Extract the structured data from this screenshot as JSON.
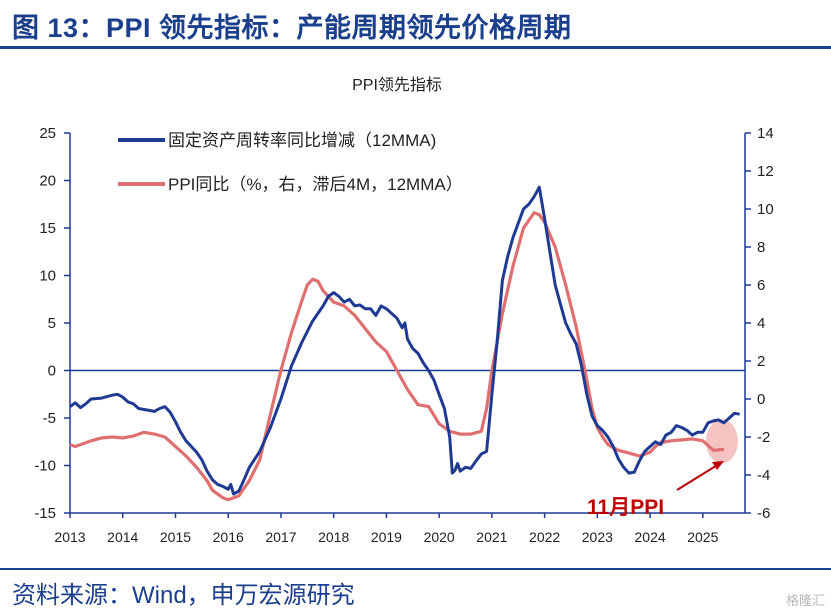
{
  "header": {
    "title": "图 13：PPI 领先指标：产能周期领先价格周期"
  },
  "footer": {
    "source": "资料来源：Wind，申万宏源研究",
    "watermark": "格隆汇"
  },
  "chart_data": {
    "type": "line",
    "title": "PPI领先指标",
    "x_ticks": [
      "2013",
      "2014",
      "2015",
      "2016",
      "2017",
      "2018",
      "2019",
      "2020",
      "2021",
      "2022",
      "2023",
      "2024",
      "2025"
    ],
    "y_left_ticks": [
      "25",
      "20",
      "15",
      "10",
      "5",
      "0",
      "-5",
      "-10",
      "-15"
    ],
    "y_right_ticks": [
      "14",
      "12",
      "10",
      "8",
      "6",
      "4",
      "2",
      "0",
      "-2",
      "-4",
      "-6"
    ],
    "y_left_range": [
      -15,
      25
    ],
    "y_right_range": [
      -6,
      14
    ],
    "legend": [
      "固定资产周转率同比增减（12MMA)",
      "PPI同比（%，右，滞后4M，12MMA）"
    ],
    "annotation": "11月PPI",
    "colors": {
      "series1": "#1f3a93",
      "series2": "#e07070",
      "annotation": "#c00000",
      "highlight": "#f4b9b9"
    },
    "series": [
      {
        "name": "固定资产周转率同比增减（12MMA)",
        "axis": "left",
        "points": [
          [
            2013.0,
            -3.8
          ],
          [
            2013.1,
            -3.4
          ],
          [
            2013.2,
            -3.9
          ],
          [
            2013.3,
            -3.5
          ],
          [
            2013.4,
            -3.0
          ],
          [
            2013.6,
            -2.9
          ],
          [
            2013.8,
            -2.6
          ],
          [
            2013.9,
            -2.5
          ],
          [
            2014.0,
            -2.8
          ],
          [
            2014.1,
            -3.3
          ],
          [
            2014.2,
            -3.5
          ],
          [
            2014.3,
            -4.0
          ],
          [
            2014.5,
            -4.2
          ],
          [
            2014.6,
            -4.3
          ],
          [
            2014.7,
            -4.0
          ],
          [
            2014.8,
            -3.8
          ],
          [
            2014.9,
            -4.4
          ],
          [
            2015.0,
            -5.4
          ],
          [
            2015.1,
            -6.5
          ],
          [
            2015.2,
            -7.4
          ],
          [
            2015.3,
            -8.0
          ],
          [
            2015.4,
            -8.6
          ],
          [
            2015.5,
            -9.4
          ],
          [
            2015.6,
            -10.6
          ],
          [
            2015.7,
            -11.5
          ],
          [
            2015.8,
            -12.0
          ],
          [
            2015.9,
            -12.2
          ],
          [
            2016.0,
            -12.5
          ],
          [
            2016.05,
            -12.0
          ],
          [
            2016.1,
            -13.0
          ],
          [
            2016.2,
            -12.7
          ],
          [
            2016.3,
            -11.5
          ],
          [
            2016.4,
            -10.2
          ],
          [
            2016.6,
            -8.5
          ],
          [
            2016.8,
            -6.0
          ],
          [
            2017.0,
            -3.0
          ],
          [
            2017.2,
            0.5
          ],
          [
            2017.4,
            3.0
          ],
          [
            2017.6,
            5.2
          ],
          [
            2017.8,
            6.8
          ],
          [
            2017.9,
            7.8
          ],
          [
            2018.0,
            8.2
          ],
          [
            2018.1,
            7.8
          ],
          [
            2018.2,
            7.2
          ],
          [
            2018.3,
            7.5
          ],
          [
            2018.4,
            6.8
          ],
          [
            2018.5,
            6.9
          ],
          [
            2018.6,
            6.5
          ],
          [
            2018.7,
            6.5
          ],
          [
            2018.8,
            5.8
          ],
          [
            2018.9,
            6.8
          ],
          [
            2019.0,
            6.5
          ],
          [
            2019.1,
            6.0
          ],
          [
            2019.2,
            5.5
          ],
          [
            2019.3,
            4.5
          ],
          [
            2019.35,
            5.0
          ],
          [
            2019.4,
            3.3
          ],
          [
            2019.5,
            2.3
          ],
          [
            2019.6,
            1.8
          ],
          [
            2019.7,
            0.8
          ],
          [
            2019.8,
            0.0
          ],
          [
            2019.9,
            -1.0
          ],
          [
            2020.0,
            -2.5
          ],
          [
            2020.1,
            -4.0
          ],
          [
            2020.2,
            -7.0
          ],
          [
            2020.25,
            -10.8
          ],
          [
            2020.3,
            -10.5
          ],
          [
            2020.35,
            -9.8
          ],
          [
            2020.4,
            -10.6
          ],
          [
            2020.5,
            -10.2
          ],
          [
            2020.6,
            -10.3
          ],
          [
            2020.7,
            -9.5
          ],
          [
            2020.8,
            -8.8
          ],
          [
            2020.9,
            -8.5
          ],
          [
            2021.0,
            -2.5
          ],
          [
            2021.1,
            3.0
          ],
          [
            2021.2,
            9.5
          ],
          [
            2021.3,
            12.0
          ],
          [
            2021.4,
            14.0
          ],
          [
            2021.5,
            15.5
          ],
          [
            2021.6,
            17.0
          ],
          [
            2021.7,
            17.5
          ],
          [
            2021.8,
            18.3
          ],
          [
            2021.9,
            19.3
          ],
          [
            2022.0,
            16.0
          ],
          [
            2022.1,
            12.5
          ],
          [
            2022.2,
            9.0
          ],
          [
            2022.3,
            7.0
          ],
          [
            2022.4,
            5.0
          ],
          [
            2022.5,
            3.8
          ],
          [
            2022.6,
            2.8
          ],
          [
            2022.7,
            0.5
          ],
          [
            2022.8,
            -2.5
          ],
          [
            2022.9,
            -4.8
          ],
          [
            2023.0,
            -5.8
          ],
          [
            2023.1,
            -6.3
          ],
          [
            2023.2,
            -7.0
          ],
          [
            2023.3,
            -8.0
          ],
          [
            2023.4,
            -9.3
          ],
          [
            2023.5,
            -10.2
          ],
          [
            2023.6,
            -10.8
          ],
          [
            2023.7,
            -10.7
          ],
          [
            2023.8,
            -9.5
          ],
          [
            2023.9,
            -8.5
          ],
          [
            2024.0,
            -8.0
          ],
          [
            2024.1,
            -7.5
          ],
          [
            2024.2,
            -7.8
          ],
          [
            2024.3,
            -6.8
          ],
          [
            2024.4,
            -6.5
          ],
          [
            2024.5,
            -5.8
          ],
          [
            2024.6,
            -6.0
          ],
          [
            2024.7,
            -6.3
          ],
          [
            2024.8,
            -6.8
          ],
          [
            2024.9,
            -6.5
          ],
          [
            2025.0,
            -6.5
          ],
          [
            2025.1,
            -5.5
          ],
          [
            2025.2,
            -5.3
          ],
          [
            2025.3,
            -5.2
          ],
          [
            2025.4,
            -5.5
          ],
          [
            2025.5,
            -5.0
          ],
          [
            2025.6,
            -4.5
          ],
          [
            2025.7,
            -4.6
          ]
        ]
      },
      {
        "name": "PPI同比（%，右，滞后4M，12MMA）",
        "axis": "right",
        "points": [
          [
            2013.0,
            -2.4
          ],
          [
            2013.1,
            -2.5
          ],
          [
            2013.2,
            -2.4
          ],
          [
            2013.4,
            -2.2
          ],
          [
            2013.6,
            -2.05
          ],
          [
            2013.8,
            -2.0
          ],
          [
            2014.0,
            -2.05
          ],
          [
            2014.2,
            -1.95
          ],
          [
            2014.4,
            -1.75
          ],
          [
            2014.6,
            -1.85
          ],
          [
            2014.8,
            -2.0
          ],
          [
            2015.0,
            -2.5
          ],
          [
            2015.2,
            -3.0
          ],
          [
            2015.4,
            -3.6
          ],
          [
            2015.6,
            -4.3
          ],
          [
            2015.7,
            -4.8
          ],
          [
            2015.9,
            -5.2
          ],
          [
            2016.0,
            -5.3
          ],
          [
            2016.2,
            -5.1
          ],
          [
            2016.4,
            -4.3
          ],
          [
            2016.6,
            -3.2
          ],
          [
            2016.8,
            -0.8
          ],
          [
            2017.0,
            1.5
          ],
          [
            2017.2,
            3.5
          ],
          [
            2017.4,
            5.2
          ],
          [
            2017.5,
            6.0
          ],
          [
            2017.6,
            6.3
          ],
          [
            2017.7,
            6.2
          ],
          [
            2017.8,
            5.7
          ],
          [
            2018.0,
            5.1
          ],
          [
            2018.2,
            4.9
          ],
          [
            2018.4,
            4.4
          ],
          [
            2018.6,
            3.7
          ],
          [
            2018.8,
            3.0
          ],
          [
            2019.0,
            2.5
          ],
          [
            2019.2,
            1.5
          ],
          [
            2019.4,
            0.5
          ],
          [
            2019.6,
            -0.3
          ],
          [
            2019.8,
            -0.4
          ],
          [
            2020.0,
            -1.3
          ],
          [
            2020.2,
            -1.7
          ],
          [
            2020.4,
            -1.85
          ],
          [
            2020.6,
            -1.85
          ],
          [
            2020.8,
            -1.7
          ],
          [
            2020.9,
            -0.5
          ],
          [
            2021.0,
            1.5
          ],
          [
            2021.2,
            4.5
          ],
          [
            2021.4,
            7.0
          ],
          [
            2021.6,
            9.0
          ],
          [
            2021.8,
            9.8
          ],
          [
            2021.9,
            9.7
          ],
          [
            2022.0,
            9.3
          ],
          [
            2022.2,
            8.0
          ],
          [
            2022.4,
            6.0
          ],
          [
            2022.6,
            3.8
          ],
          [
            2022.8,
            1.0
          ],
          [
            2022.9,
            -0.5
          ],
          [
            2023.0,
            -1.5
          ],
          [
            2023.1,
            -2.0
          ],
          [
            2023.2,
            -2.4
          ],
          [
            2023.4,
            -2.7
          ],
          [
            2023.6,
            -2.85
          ],
          [
            2023.8,
            -3.0
          ],
          [
            2024.0,
            -2.8
          ],
          [
            2024.1,
            -2.5
          ],
          [
            2024.2,
            -2.3
          ],
          [
            2024.4,
            -2.2
          ],
          [
            2024.6,
            -2.15
          ],
          [
            2024.8,
            -2.1
          ],
          [
            2025.0,
            -2.2
          ],
          [
            2025.2,
            -2.7
          ],
          [
            2025.4,
            -2.65
          ]
        ]
      }
    ]
  }
}
